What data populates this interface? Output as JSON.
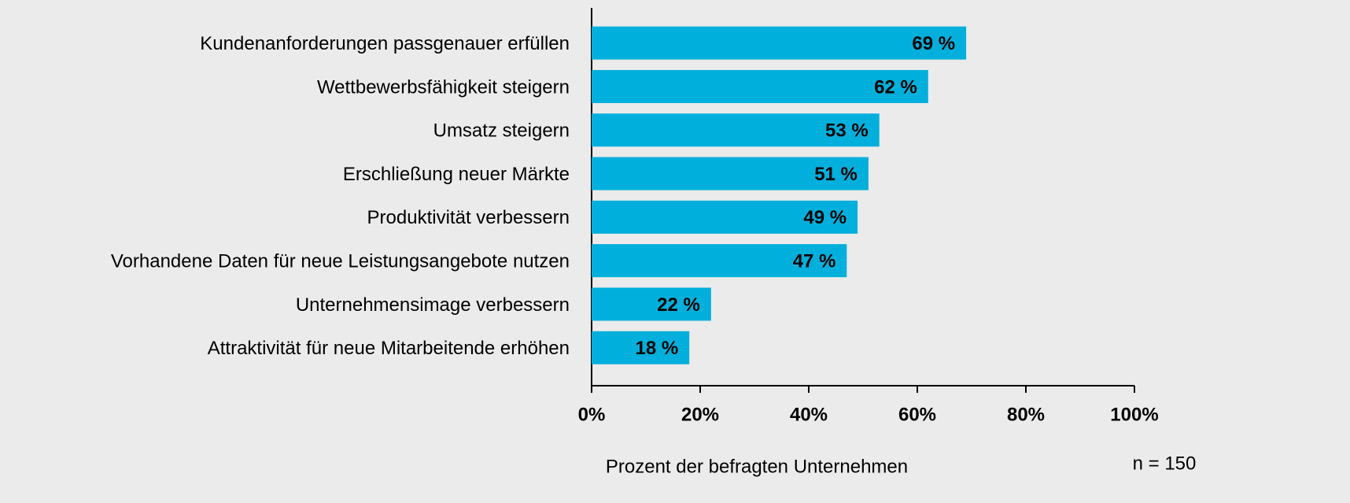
{
  "chart_data": {
    "type": "bar",
    "orientation": "horizontal",
    "categories": [
      "Kundenanforderungen passgenauer erfüllen",
      "Wettbewerbsfähigkeit steigern",
      "Umsatz steigern",
      "Erschließung neuer Märkte",
      "Produktivität verbessern",
      "Vorhandene Daten für neue Leistungsangebote nutzen",
      "Unternehmensimage verbessern",
      "Attraktivität für neue Mitarbeitende erhöhen"
    ],
    "values": [
      69,
      62,
      53,
      51,
      49,
      47,
      22,
      18
    ],
    "value_labels": [
      "69 %",
      "62 %",
      "53 %",
      "51 %",
      "49 %",
      "47 %",
      "22 %",
      "18 %"
    ],
    "color": "#00afdb",
    "xlim": [
      0,
      100
    ],
    "xticks": [
      {
        "value": 0,
        "label": "0%"
      },
      {
        "value": 20,
        "label": "20%"
      },
      {
        "value": 40,
        "label": "40%"
      },
      {
        "value": 60,
        "label": "60%"
      },
      {
        "value": 80,
        "label": "80%"
      },
      {
        "value": 100,
        "label": "100%"
      }
    ],
    "x_label": "Prozent der befragten Unternehmen",
    "annotation": "n = 150",
    "grid": false
  }
}
